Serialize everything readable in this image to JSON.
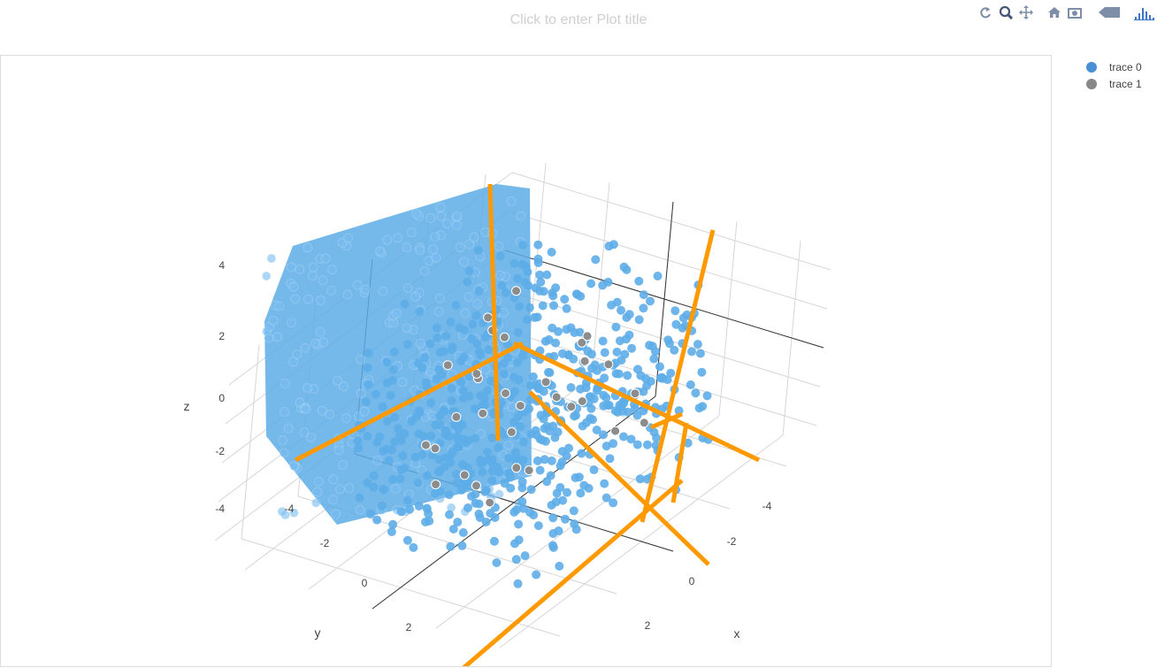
{
  "title_placeholder": "Click to enter Plot title",
  "modebar": [
    {
      "name": "reset-camera-icon",
      "glyph": "↺",
      "tip": "Reset camera"
    },
    {
      "name": "zoom-icon",
      "glyph": "⊕",
      "tip": "Zoom"
    },
    {
      "name": "pan-icon",
      "glyph": "✥",
      "tip": "Pan"
    },
    {
      "name": "home-icon",
      "glyph": "⌂",
      "tip": "Reset to default"
    },
    {
      "name": "camera-icon",
      "glyph": "▣",
      "tip": "Download plot as png"
    },
    {
      "name": "hover-icon",
      "glyph": "◄",
      "tip": "Toggle hover"
    },
    {
      "name": "plotly-logo-icon",
      "glyph": "▁▃▅▇",
      "tip": "Produced with Plotly"
    }
  ],
  "legend": [
    {
      "name": "trace 0",
      "color": "#4a8fd6"
    },
    {
      "name": "trace 1",
      "color": "#888888"
    }
  ],
  "chart_data": {
    "type": "scatter3d",
    "title": "",
    "xaxis": {
      "title": "x",
      "ticks": [
        "-4",
        "-2",
        "0",
        "2"
      ]
    },
    "yaxis": {
      "title": "y",
      "ticks": [
        "-4",
        "-2",
        "0",
        "2"
      ]
    },
    "zaxis": {
      "title": "z",
      "ticks": [
        "-4",
        "-2",
        "0",
        "2",
        "4"
      ]
    },
    "legend_position": "top-right",
    "grid": true,
    "series": [
      {
        "name": "trace 0",
        "color": "#5dade8",
        "mode": "markers",
        "approx_point_count": 1000,
        "distribution": "uniform cloud in [-4,4]^3"
      },
      {
        "name": "trace 1",
        "color": "#8c8c8c",
        "mode": "markers",
        "approx_point_count": 40,
        "distribution": "cloud near center"
      },
      {
        "name": "",
        "color": "#ff9900",
        "mode": "lines",
        "note": "crossing highlight lines (unlabeled)"
      }
    ]
  }
}
